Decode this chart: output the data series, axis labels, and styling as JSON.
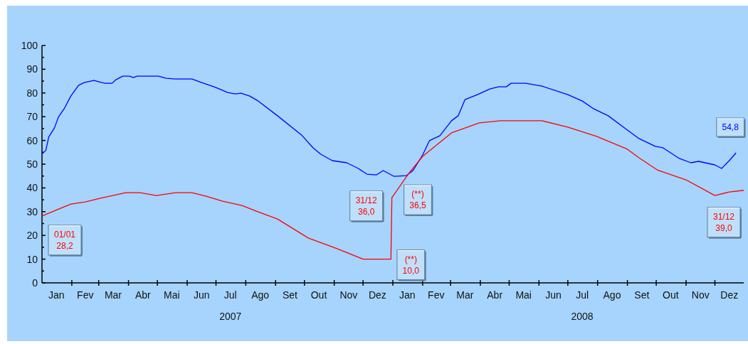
{
  "chart_data": {
    "type": "line",
    "xlim": [
      "2007-01-01",
      "2008-12-31"
    ],
    "ylim": [
      0,
      100
    ],
    "yticks": [
      0,
      {
        "value": 5,
        "label": null
      },
      10,
      {
        "value": 15,
        "label": null
      },
      20,
      {
        "value": 25,
        "label": null
      },
      30,
      {
        "value": 35,
        "label": null
      },
      40,
      {
        "value": 45,
        "label": null
      },
      50,
      {
        "value": 55,
        "label": null
      },
      60,
      {
        "value": 65,
        "label": null
      },
      70,
      {
        "value": 75,
        "label": null
      },
      80,
      {
        "value": 85,
        "label": null
      },
      90,
      {
        "value": 95,
        "label": null
      },
      100
    ],
    "xticks": [
      {
        "value": "2007-01-16",
        "label": "Jan"
      },
      {
        "value": "2007-02-01",
        "label": null
      },
      {
        "value": "2007-02-15",
        "label": "Fev"
      },
      {
        "value": "2007-03-01",
        "label": null
      },
      {
        "value": "2007-03-16",
        "label": "Mar"
      },
      {
        "value": "2007-04-01",
        "label": null
      },
      {
        "value": "2007-04-16",
        "label": "Abr"
      },
      {
        "value": "2007-05-01",
        "label": null
      },
      {
        "value": "2007-05-16",
        "label": "Mai"
      },
      {
        "value": "2007-06-01",
        "label": null
      },
      {
        "value": "2007-06-16",
        "label": "Jun"
      },
      {
        "value": "2007-07-01",
        "label": null
      },
      {
        "value": "2007-07-16",
        "label": "Jul\n2007"
      },
      {
        "value": "2007-08-01",
        "label": null
      },
      {
        "value": "2007-08-16",
        "label": "Ago"
      },
      {
        "value": "2007-09-01",
        "label": null
      },
      {
        "value": "2007-09-16",
        "label": "Set"
      },
      {
        "value": "2007-10-01",
        "label": null
      },
      {
        "value": "2007-10-16",
        "label": "Out"
      },
      {
        "value": "2007-11-01",
        "label": null
      },
      {
        "value": "2007-11-16",
        "label": "Nov"
      },
      {
        "value": "2007-12-01",
        "label": null
      },
      {
        "value": "2007-12-16",
        "label": "Dez"
      },
      {
        "value": "2008-01-01",
        "label": null
      },
      {
        "value": "2008-01-16",
        "label": "Jan"
      },
      {
        "value": "2008-02-01",
        "label": null
      },
      {
        "value": "2008-02-15",
        "label": "Fev"
      },
      {
        "value": "2008-03-01",
        "label": null
      },
      {
        "value": "2008-03-16",
        "label": "Mar"
      },
      {
        "value": "2008-04-01",
        "label": null
      },
      {
        "value": "2008-04-16",
        "label": "Abr"
      },
      {
        "value": "2008-05-01",
        "label": null
      },
      {
        "value": "2008-05-16",
        "label": "Mai"
      },
      {
        "value": "2008-06-01",
        "label": null
      },
      {
        "value": "2008-06-16",
        "label": "Jun"
      },
      {
        "value": "2008-07-01",
        "label": null
      },
      {
        "value": "2008-07-16",
        "label": "Jul\n2008"
      },
      {
        "value": "2008-08-01",
        "label": null
      },
      {
        "value": "2008-08-16",
        "label": "Ago"
      },
      {
        "value": "2008-09-01",
        "label": null
      },
      {
        "value": "2008-09-16",
        "label": "Set"
      },
      {
        "value": "2008-10-01",
        "label": null
      },
      {
        "value": "2008-10-16",
        "label": "Out"
      },
      {
        "value": "2008-11-01",
        "label": null
      },
      {
        "value": "2008-11-16",
        "label": "Nov"
      },
      {
        "value": "2008-12-01",
        "label": null
      },
      {
        "value": "2008-12-16",
        "label": "Dez"
      }
    ],
    "series": [
      {
        "color": "#0000ff",
        "x": [
          "2007-01-01",
          "2007-01-05",
          "2007-01-08",
          "2007-01-14",
          "2007-01-18",
          "2007-01-24",
          "2007-01-31",
          "2007-02-08",
          "2007-02-14",
          "2007-02-24",
          "2007-03-04",
          "2007-03-08",
          "2007-03-15",
          "2007-03-19",
          "2007-03-26",
          "2007-04-02",
          "2007-04-06",
          "2007-04-10",
          "2007-05-02",
          "2007-05-10",
          "2007-05-20",
          "2007-06-06",
          "2007-06-16",
          "2007-06-29",
          "2007-07-08",
          "2007-07-13",
          "2007-07-21",
          "2007-07-27",
          "2007-08-05",
          "2007-08-14",
          "2007-09-03",
          "2007-09-28",
          "2007-10-10",
          "2007-10-18",
          "2007-10-30",
          "2007-11-14",
          "2007-11-26",
          "2007-12-05",
          "2007-12-15",
          "2007-12-22",
          "2008-01-02",
          "2008-01-15",
          "2008-01-22",
          "2008-02-01",
          "2008-02-08",
          "2008-02-19",
          "2008-03-02",
          "2008-03-09",
          "2008-03-16",
          "2008-03-29",
          "2008-04-11",
          "2008-04-20",
          "2008-04-28",
          "2008-05-03",
          "2008-05-18",
          "2008-06-04",
          "2008-07-01",
          "2008-07-16",
          "2008-07-28",
          "2008-08-12",
          "2008-08-29",
          "2008-09-13",
          "2008-09-30",
          "2008-10-08",
          "2008-10-25",
          "2008-11-06",
          "2008-11-14",
          "2008-12-01",
          "2008-12-08",
          "2008-12-16",
          "2008-12-23"
        ],
        "values": [
          54.3,
          55.8,
          61.4,
          65.3,
          69.8,
          73.3,
          78.7,
          83.2,
          84.4,
          85.3,
          84.4,
          84.1,
          84.1,
          85.6,
          87.1,
          87.1,
          86.5,
          87.1,
          87.1,
          86.2,
          85.9,
          85.9,
          84.4,
          82.6,
          81.1,
          80.2,
          79.6,
          79.9,
          78.7,
          76.6,
          70.4,
          62.3,
          56.9,
          54.2,
          51.5,
          50.6,
          48.2,
          45.8,
          45.5,
          47.3,
          44.9,
          45.2,
          47.3,
          53.9,
          59.9,
          62.0,
          68.3,
          70.4,
          77.2,
          79.3,
          81.7,
          82.6,
          82.6,
          84.1,
          84.1,
          82.9,
          79.3,
          76.6,
          73.3,
          70.4,
          65.3,
          60.8,
          57.5,
          56.9,
          52.4,
          50.6,
          51.2,
          49.7,
          48.2,
          51.5,
          54.8
        ]
      },
      {
        "color": "#ff0000",
        "x": [
          "2007-01-01",
          "2007-01-31",
          "2007-02-15",
          "2007-03-02",
          "2007-03-29",
          "2007-04-13",
          "2007-04-30",
          "2007-05-20",
          "2007-06-06",
          "2007-06-21",
          "2007-07-08",
          "2007-07-28",
          "2007-08-12",
          "2007-09-03",
          "2007-10-05",
          "2007-11-04",
          "2007-12-01",
          "2007-12-30",
          "2007-12-31",
          "2008-01-01",
          "2008-01-17",
          "2008-02-01",
          "2008-03-02",
          "2008-03-31",
          "2008-04-22",
          "2008-06-04",
          "2008-07-01",
          "2008-07-31",
          "2008-09-01",
          "2008-09-13",
          "2008-10-02",
          "2008-11-01",
          "2008-12-01",
          "2008-12-16",
          "2008-12-31"
        ],
        "values": [
          28.2,
          33.2,
          34.1,
          35.6,
          38.0,
          38.0,
          36.8,
          38.0,
          38.0,
          36.5,
          34.4,
          32.6,
          30.2,
          26.9,
          18.9,
          14.4,
          10.0,
          10.0,
          36.0,
          36.5,
          45.8,
          53.3,
          63.2,
          67.4,
          68.3,
          68.3,
          65.6,
          61.7,
          56.3,
          52.7,
          47.6,
          43.4,
          36.8,
          38.3,
          39.0
        ]
      }
    ],
    "annotations": [
      {
        "text": "01/01\n28,2",
        "x": "2007-01-01",
        "y": 28.2
      },
      {
        "text": "31/12\n36,0",
        "x": "2007-12-31",
        "y": 36.0
      },
      {
        "text": "(**)\n36,5",
        "x": "2008-01-01",
        "y": 36.5
      },
      {
        "text": "(**)\n10,0",
        "x": "2007-12-30",
        "y": 10.0
      },
      {
        "text": "54,8",
        "x": "2008-12-23",
        "y": 54.8
      },
      {
        "text": "31/12\n39,0",
        "x": "2008-12-31",
        "y": 39.0
      }
    ],
    "grid": false,
    "marker": "none",
    "line_style": "solid"
  }
}
